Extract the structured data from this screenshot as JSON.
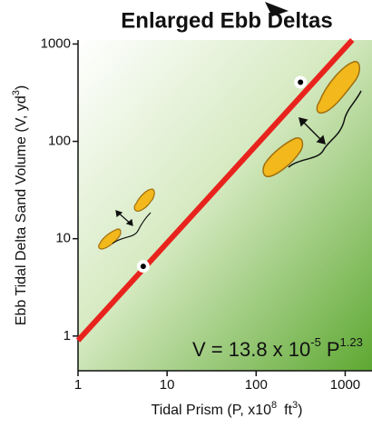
{
  "chart_data": {
    "type": "line",
    "title": "Enlarged Ebb Deltas",
    "x_label_parts": [
      "Tidal Prism (P, x10",
      "8",
      "ft",
      "3",
      ")"
    ],
    "y_label_parts": [
      "Ebb Tidal Delta Sand Volume (V, yd",
      "3",
      ")"
    ],
    "equation_parts": [
      "V = 13.8 x 10",
      "-5",
      "P",
      "1.23"
    ],
    "xscale": "log",
    "yscale": "log",
    "xlim": [
      1,
      2000
    ],
    "ylim": [
      0.44,
      1100
    ],
    "xticks": [
      1,
      10,
      100,
      1000
    ],
    "yticks": [
      1,
      10,
      100,
      1000
    ],
    "series": [
      {
        "x": [
          1,
          1200
        ],
        "values": [
          0.9,
          1100
        ],
        "color": "#e8231d"
      }
    ],
    "points": {
      "x": [
        5.4,
        315
      ],
      "values": [
        5.2,
        405
      ],
      "color": "#000000"
    }
  }
}
